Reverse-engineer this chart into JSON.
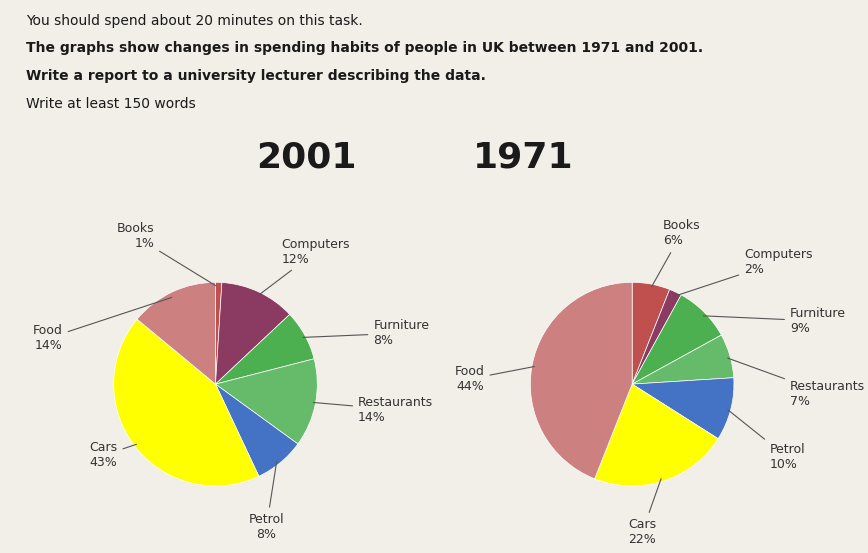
{
  "header_lines": [
    "You should spend about 20 minutes on this task.",
    "The graphs show changes in spending habits of people in UK between 1971 and 2001.",
    "Write a report to a university lecturer describing the data.",
    "Write at least 150 words"
  ],
  "header_bold": [
    false,
    true,
    true,
    false
  ],
  "chart2001": {
    "title": "2001",
    "labels": [
      "Books",
      "Computers",
      "Furniture",
      "Restaurants",
      "Petrol",
      "Cars",
      "Food"
    ],
    "values": [
      1,
      12,
      8,
      14,
      8,
      43,
      14
    ],
    "colors": [
      "#c0504d",
      "#8B3A62",
      "#4CAF50",
      "#66BB6A",
      "#4472C4",
      "#FFFF00",
      "#CD8080"
    ],
    "startangle": 90
  },
  "chart1971": {
    "title": "1971",
    "labels": [
      "Books",
      "Computers",
      "Furniture",
      "Restaurants",
      "Petrol",
      "Cars",
      "Food"
    ],
    "values": [
      6,
      2,
      9,
      7,
      10,
      22,
      44
    ],
    "colors": [
      "#c0504d",
      "#8B3A62",
      "#4CAF50",
      "#66BB6A",
      "#4472C4",
      "#FFFF00",
      "#CD8080"
    ],
    "startangle": 90
  },
  "bg_color": "#f2efe9",
  "title_fontsize": 26,
  "label_fontsize": 9,
  "header_fontsize": 10,
  "annot_color": "#333333",
  "arrow_color": "#555555"
}
